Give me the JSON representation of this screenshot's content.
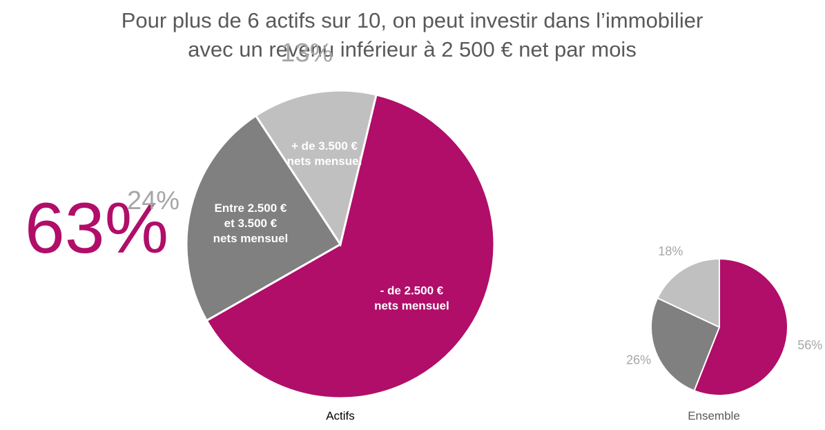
{
  "title": {
    "line1": "Pour plus de 6 actifs sur 10, on peut investir dans l’immobilier",
    "line2": "avec un revenu inférieur à 2 500 € net par mois"
  },
  "highlight": "63%",
  "chart_data": [
    {
      "type": "pie",
      "caption": "Actifs",
      "categories": [
        "- de 2.500 € nets mensuel",
        "Entre 2.500 € et 3.500 € nets mensuel",
        "+ de 3.500 € nets mensuel"
      ],
      "values": [
        63,
        24,
        13
      ],
      "colors": [
        "#b00e69",
        "#808080",
        "#c0c0c0"
      ],
      "slice_labels": [
        [
          "- de 2.500 €",
          "nets mensuel"
        ],
        [
          "Entre 2.500 €",
          "et 3.500 €",
          "nets mensuel"
        ],
        [
          "+ de 3.500 €",
          "nets mensuel"
        ]
      ],
      "outer_labels": [
        "",
        "24%",
        "13%"
      ]
    },
    {
      "type": "pie",
      "caption": "Ensemble",
      "values": [
        56,
        26,
        18
      ],
      "colors": [
        "#b00e69",
        "#808080",
        "#c0c0c0"
      ],
      "outer_labels": [
        "56%",
        "26%",
        "18%"
      ]
    }
  ]
}
